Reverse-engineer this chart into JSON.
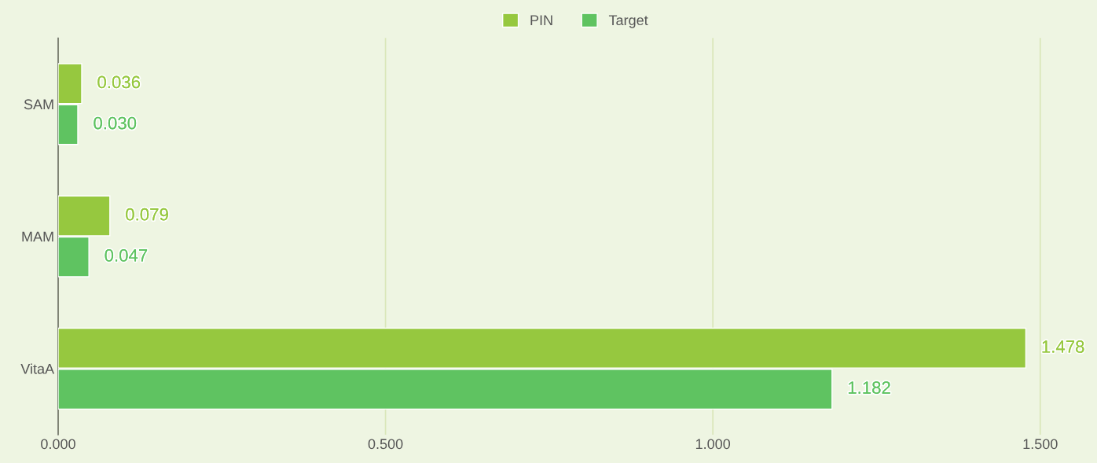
{
  "chart_data": {
    "type": "bar",
    "orientation": "horizontal",
    "categories": [
      "SAM",
      "MAM",
      "VitaA"
    ],
    "series": [
      {
        "name": "PIN",
        "color": "#96c83f",
        "values": [
          0.036,
          0.079,
          1.478
        ],
        "value_labels": [
          "0.036",
          "0.079",
          "1.478"
        ]
      },
      {
        "name": "Target",
        "color": "#5fc361",
        "values": [
          0.03,
          0.047,
          1.182
        ],
        "value_labels": [
          "0.030",
          "0.047",
          "1.182"
        ]
      }
    ],
    "xlim": [
      0,
      1.58
    ],
    "xticks": [
      {
        "value": 0,
        "label": "0.000"
      },
      {
        "value": 0.5,
        "label": "0.500"
      },
      {
        "value": 1,
        "label": "1.000"
      },
      {
        "value": 1.5,
        "label": "1.500"
      }
    ],
    "grid": "x",
    "legend": "top"
  }
}
